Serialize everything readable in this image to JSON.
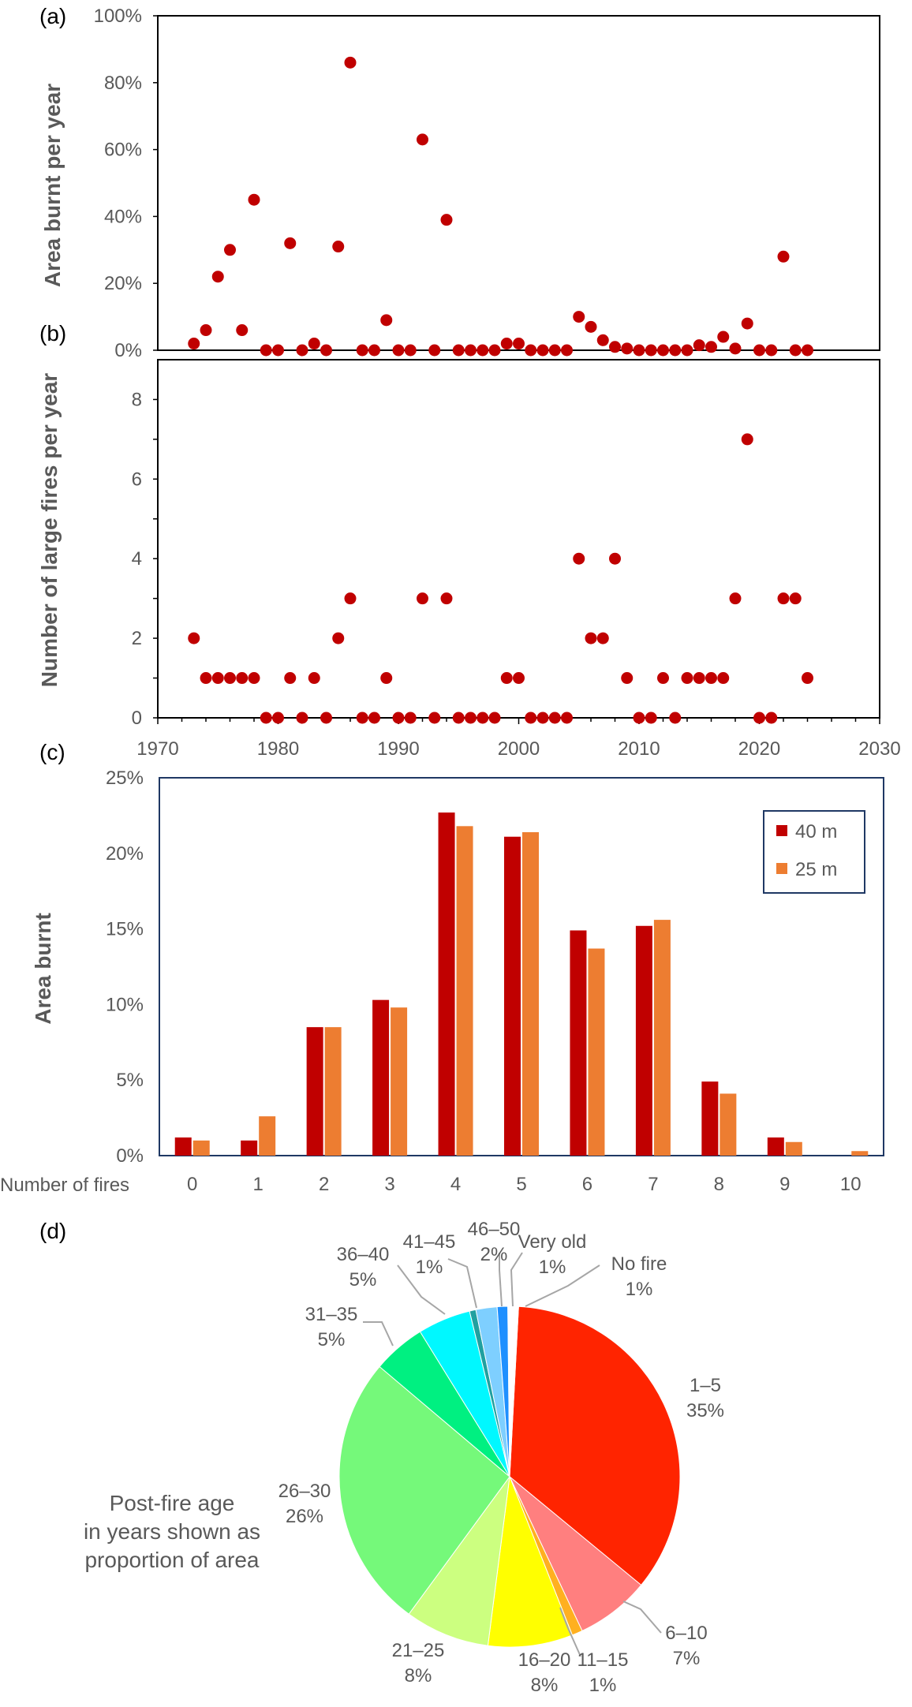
{
  "panel_labels": {
    "a": "(a)",
    "b": "(b)",
    "c": "(c)",
    "d": "(d)"
  },
  "colors": {
    "marker": "#C00000",
    "series_40": "#C00000",
    "series_25": "#ED7D31",
    "axis": "#000000",
    "tick_text": "#595959",
    "frame_c": "#1F3864"
  },
  "chart_data": [
    {
      "id": "a",
      "type": "scatter",
      "ylabel": "Area burnt per year",
      "xlim": [
        1970,
        2030
      ],
      "ylim": [
        0,
        100
      ],
      "yticks": [
        "0%",
        "20%",
        "40%",
        "60%",
        "80%",
        "100%"
      ],
      "ytick_values": [
        0,
        20,
        40,
        60,
        80,
        100
      ],
      "x": [
        1973,
        1974,
        1975,
        1976,
        1977,
        1978,
        1979,
        1980,
        1981,
        1982,
        1983,
        1984,
        1985,
        1986,
        1987,
        1988,
        1989,
        1990,
        1991,
        1992,
        1993,
        1994,
        1995,
        1996,
        1997,
        1998,
        1999,
        2000,
        2001,
        2002,
        2003,
        2004,
        2005,
        2006,
        2007,
        2008,
        2009,
        2010,
        2011,
        2012,
        2013,
        2014,
        2015,
        2016,
        2017,
        2018,
        2019,
        2020,
        2021,
        2022,
        2023,
        2024
      ],
      "y": [
        2,
        6,
        22,
        30,
        6,
        45,
        0,
        0,
        32,
        0,
        2,
        0,
        31,
        86,
        0,
        0,
        9,
        0,
        0,
        63,
        0,
        39,
        0,
        0,
        0,
        0,
        2,
        2,
        0,
        0,
        0,
        0,
        10,
        7,
        3,
        1,
        0.5,
        0,
        0,
        0,
        0,
        0,
        1.5,
        1,
        4,
        0.5,
        8,
        0,
        0,
        28,
        0,
        0
      ]
    },
    {
      "id": "b",
      "type": "scatter",
      "ylabel": "Number of large fires per year",
      "xlim": [
        1970,
        2030
      ],
      "ylim": [
        0,
        9
      ],
      "yticks": [
        "0",
        "2",
        "4",
        "6",
        "8"
      ],
      "ytick_values": [
        0,
        2,
        4,
        6,
        8
      ],
      "xticks": [
        "1970",
        "1980",
        "1990",
        "2000",
        "2010",
        "2020",
        "2030"
      ],
      "xtick_values": [
        1970,
        1980,
        1990,
        2000,
        2010,
        2020,
        2030
      ],
      "x": [
        1973,
        1974,
        1975,
        1976,
        1977,
        1978,
        1979,
        1980,
        1981,
        1982,
        1983,
        1984,
        1985,
        1986,
        1987,
        1988,
        1989,
        1990,
        1991,
        1992,
        1993,
        1994,
        1995,
        1996,
        1997,
        1998,
        1999,
        2000,
        2001,
        2002,
        2003,
        2004,
        2005,
        2006,
        2007,
        2008,
        2009,
        2010,
        2011,
        2012,
        2013,
        2014,
        2015,
        2016,
        2017,
        2018,
        2019,
        2020,
        2021,
        2022,
        2023,
        2024
      ],
      "y": [
        2,
        1,
        1,
        1,
        1,
        1,
        0,
        0,
        1,
        0,
        1,
        0,
        2,
        3,
        0,
        0,
        1,
        0,
        0,
        3,
        0,
        3,
        0,
        0,
        0,
        0,
        1,
        1,
        0,
        0,
        0,
        0,
        4,
        2,
        2,
        4,
        1,
        0,
        0,
        1,
        0,
        1,
        1,
        1,
        1,
        3,
        7,
        0,
        0,
        3,
        3,
        1
      ]
    },
    {
      "id": "c",
      "type": "bar",
      "ylabel": "Area burnt",
      "xlabel": "Number of fires",
      "ylim": [
        0,
        25
      ],
      "yticks": [
        "0%",
        "5%",
        "10%",
        "15%",
        "20%",
        "25%"
      ],
      "ytick_values": [
        0,
        5,
        10,
        15,
        20,
        25
      ],
      "categories": [
        "0",
        "1",
        "2",
        "3",
        "4",
        "5",
        "6",
        "7",
        "8",
        "9",
        "10"
      ],
      "legend_position": "top-right",
      "series": [
        {
          "name": "40 m",
          "values": [
            1.2,
            1.0,
            8.5,
            10.3,
            22.7,
            21.1,
            14.9,
            15.2,
            4.9,
            1.2,
            0
          ]
        },
        {
          "name": "25 m",
          "values": [
            1.0,
            2.6,
            8.5,
            9.8,
            21.8,
            21.4,
            13.7,
            15.6,
            4.1,
            0.9,
            0.3
          ]
        }
      ]
    },
    {
      "id": "d",
      "type": "pie",
      "caption": [
        "Post-fire age",
        "in years shown as",
        "proportion of area"
      ],
      "slices": [
        {
          "name": "1–5",
          "label": "35%",
          "value": 35,
          "color": "#FF2400"
        },
        {
          "name": "6–10",
          "label": "7%",
          "value": 7,
          "color": "#FF7F7F"
        },
        {
          "name": "11–15",
          "label": "1%",
          "value": 1,
          "color": "#FFB020"
        },
        {
          "name": "16–20",
          "label": "8%",
          "value": 8,
          "color": "#FFFF00"
        },
        {
          "name": "21–25",
          "label": "8%",
          "value": 8,
          "color": "#CCFF80"
        },
        {
          "name": "26–30",
          "label": "26%",
          "value": 26,
          "color": "#75F97A"
        },
        {
          "name": "31–35",
          "label": "5%",
          "value": 5,
          "color": "#00F081"
        },
        {
          "name": "36–40",
          "label": "5%",
          "value": 5,
          "color": "#00F8FF"
        },
        {
          "name": "41–45",
          "label": "1%",
          "value": 0.6,
          "color": "#20A0A0"
        },
        {
          "name": "46–50",
          "label": "2%",
          "value": 2,
          "color": "#7ECFFF"
        },
        {
          "name": "Very old",
          "label": "1%",
          "value": 1,
          "color": "#1E90FF"
        },
        {
          "name": "No fire",
          "label": "1%",
          "value": 1,
          "color": "#FFFFFF"
        }
      ]
    }
  ]
}
